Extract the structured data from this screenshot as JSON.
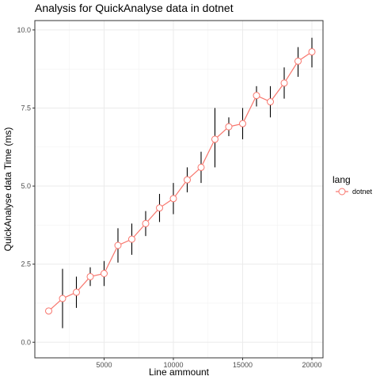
{
  "chart_data": {
    "type": "line",
    "title": "Analysis for QuickAnalyse data in dotnet",
    "xlabel": "Line ammount",
    "ylabel": "QuickAnalyse data Time (ms)",
    "xlim": [
      0,
      20800
    ],
    "ylim": [
      -0.5,
      10.3
    ],
    "x_ticks": [
      5000,
      10000,
      15000,
      20000
    ],
    "x_tick_labels": [
      "5000",
      "10000",
      "15000",
      "20000"
    ],
    "y_ticks": [
      0,
      2.5,
      5,
      7.5,
      10
    ],
    "y_tick_labels": [
      "0.0",
      "2.5",
      "5.0",
      "7.5",
      "10.0"
    ],
    "grid": true,
    "legend_position": "right",
    "legend_title": "lang",
    "series": [
      {
        "name": "dotnet",
        "color": "#f8766d",
        "x": [
          1000,
          2000,
          3000,
          4000,
          5000,
          6000,
          7000,
          8000,
          9000,
          10000,
          11000,
          12000,
          13000,
          14000,
          15000,
          16000,
          17000,
          18000,
          19000,
          20000
        ],
        "y": [
          1.0,
          1.4,
          1.6,
          2.1,
          2.2,
          3.1,
          3.3,
          3.8,
          4.3,
          4.6,
          5.2,
          5.6,
          6.5,
          6.9,
          7.0,
          7.9,
          7.7,
          8.3,
          9.0,
          9.3
        ],
        "err_low": [
          1.0,
          0.45,
          1.1,
          1.8,
          1.8,
          2.55,
          2.8,
          3.4,
          3.85,
          4.1,
          4.8,
          5.1,
          5.6,
          6.6,
          6.5,
          7.55,
          7.2,
          7.8,
          8.5,
          8.8
        ],
        "err_high": [
          1.0,
          2.35,
          2.1,
          2.4,
          2.6,
          3.65,
          3.8,
          4.2,
          4.75,
          5.1,
          5.6,
          6.1,
          7.5,
          7.2,
          7.5,
          8.2,
          8.2,
          8.8,
          9.45,
          9.75
        ]
      }
    ]
  }
}
